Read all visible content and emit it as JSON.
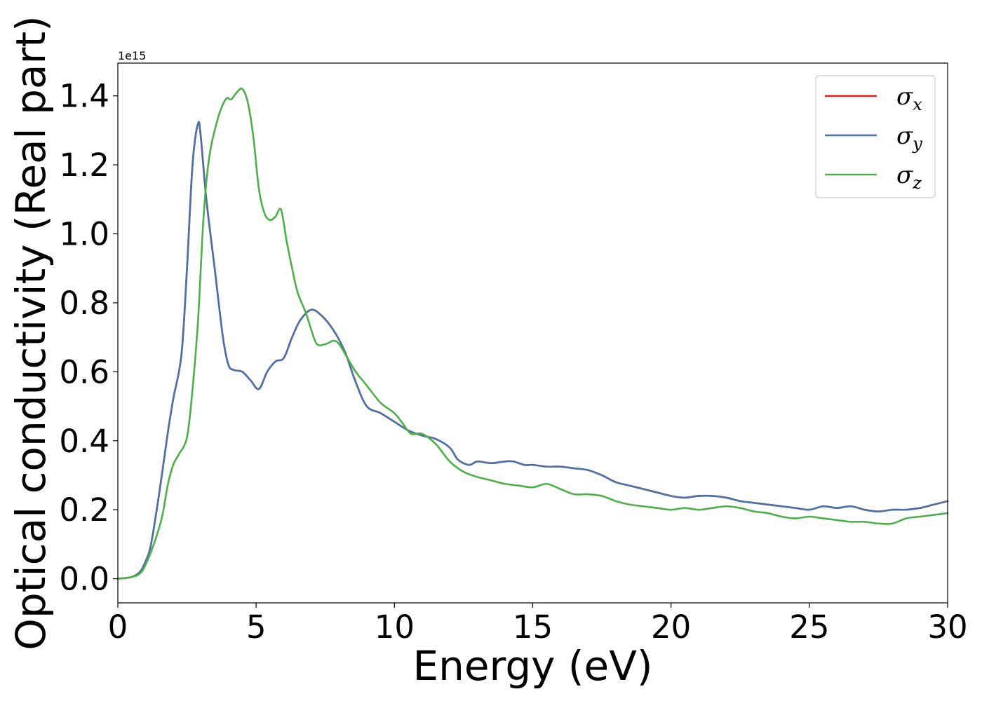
{
  "chart_data": {
    "type": "line",
    "title": "",
    "xlabel": "Energy (eV)",
    "ylabel": "Optical conductivity (Real part)",
    "y_offset_label": "1e15",
    "xlim": [
      0,
      30
    ],
    "ylim": [
      -0.07,
      1.495
    ],
    "x_ticks": [
      0,
      5,
      10,
      15,
      20,
      25,
      30
    ],
    "x_tick_labels": [
      "0",
      "5",
      "10",
      "15",
      "20",
      "25",
      "30"
    ],
    "y_ticks": [
      0.0,
      0.2,
      0.4,
      0.6,
      0.8,
      1.0,
      1.2,
      1.4
    ],
    "y_tick_labels": [
      "0.0",
      "0.2",
      "0.4",
      "0.6",
      "0.8",
      "1.0",
      "1.2",
      "1.4"
    ],
    "grid": false,
    "legend_position": "top-right",
    "series": [
      {
        "name": "σx",
        "symbol": "σ",
        "subscript": "x",
        "color": "#e41a1c",
        "x": [
          0,
          0.5,
          0.8,
          1.0,
          1.2,
          1.5,
          1.8,
          2.0,
          2.3,
          2.5,
          2.7,
          2.9,
          3.0,
          3.2,
          3.5,
          3.8,
          4.0,
          4.2,
          4.5,
          4.8,
          5.1,
          5.4,
          5.7,
          6.0,
          6.3,
          6.6,
          7.0,
          7.4,
          7.8,
          8.2,
          8.6,
          9.0,
          9.5,
          10.0,
          10.5,
          11.0,
          11.5,
          12.0,
          12.3,
          12.7,
          13.0,
          13.5,
          14.0,
          14.3,
          14.7,
          15.0,
          15.5,
          16.0,
          16.5,
          17.0,
          17.5,
          18.0,
          18.5,
          19.0,
          19.5,
          20.0,
          20.5,
          21.0,
          21.5,
          22.0,
          22.5,
          23.0,
          23.5,
          24.0,
          24.5,
          25.0,
          25.5,
          26.0,
          26.5,
          27.0,
          27.5,
          28.0,
          28.5,
          29.0,
          29.5,
          30.0
        ],
        "values": [
          0.0,
          0.005,
          0.02,
          0.05,
          0.1,
          0.25,
          0.42,
          0.52,
          0.65,
          0.9,
          1.2,
          1.32,
          1.28,
          1.1,
          0.9,
          0.7,
          0.62,
          0.605,
          0.6,
          0.575,
          0.55,
          0.6,
          0.63,
          0.64,
          0.7,
          0.75,
          0.78,
          0.76,
          0.72,
          0.66,
          0.57,
          0.5,
          0.48,
          0.455,
          0.43,
          0.415,
          0.405,
          0.38,
          0.345,
          0.33,
          0.34,
          0.335,
          0.34,
          0.34,
          0.33,
          0.33,
          0.325,
          0.325,
          0.32,
          0.315,
          0.3,
          0.28,
          0.27,
          0.26,
          0.25,
          0.24,
          0.235,
          0.24,
          0.24,
          0.235,
          0.225,
          0.22,
          0.215,
          0.21,
          0.205,
          0.2,
          0.21,
          0.205,
          0.21,
          0.2,
          0.195,
          0.2,
          0.2,
          0.205,
          0.215,
          0.225
        ]
      },
      {
        "name": "σy",
        "symbol": "σ",
        "subscript": "y",
        "color": "#4a73a8",
        "x": [
          0,
          0.5,
          0.8,
          1.0,
          1.2,
          1.5,
          1.8,
          2.0,
          2.3,
          2.5,
          2.7,
          2.9,
          3.0,
          3.2,
          3.5,
          3.8,
          4.0,
          4.2,
          4.5,
          4.8,
          5.1,
          5.4,
          5.7,
          6.0,
          6.3,
          6.6,
          7.0,
          7.4,
          7.8,
          8.2,
          8.6,
          9.0,
          9.5,
          10.0,
          10.5,
          11.0,
          11.5,
          12.0,
          12.3,
          12.7,
          13.0,
          13.5,
          14.0,
          14.3,
          14.7,
          15.0,
          15.5,
          16.0,
          16.5,
          17.0,
          17.5,
          18.0,
          18.5,
          19.0,
          19.5,
          20.0,
          20.5,
          21.0,
          21.5,
          22.0,
          22.5,
          23.0,
          23.5,
          24.0,
          24.5,
          25.0,
          25.5,
          26.0,
          26.5,
          27.0,
          27.5,
          28.0,
          28.5,
          29.0,
          29.5,
          30.0
        ],
        "values": [
          0.0,
          0.005,
          0.02,
          0.05,
          0.1,
          0.25,
          0.42,
          0.52,
          0.65,
          0.9,
          1.2,
          1.32,
          1.28,
          1.1,
          0.9,
          0.7,
          0.62,
          0.605,
          0.6,
          0.575,
          0.55,
          0.6,
          0.63,
          0.64,
          0.7,
          0.75,
          0.78,
          0.76,
          0.72,
          0.66,
          0.57,
          0.5,
          0.48,
          0.455,
          0.43,
          0.415,
          0.405,
          0.38,
          0.345,
          0.33,
          0.34,
          0.335,
          0.34,
          0.34,
          0.33,
          0.33,
          0.325,
          0.325,
          0.32,
          0.315,
          0.3,
          0.28,
          0.27,
          0.26,
          0.25,
          0.24,
          0.235,
          0.24,
          0.24,
          0.235,
          0.225,
          0.22,
          0.215,
          0.21,
          0.205,
          0.2,
          0.21,
          0.205,
          0.21,
          0.2,
          0.195,
          0.2,
          0.2,
          0.205,
          0.215,
          0.225
        ]
      },
      {
        "name": "σz",
        "symbol": "σ",
        "subscript": "z",
        "color": "#4daf4a",
        "x": [
          0,
          0.5,
          0.8,
          1.0,
          1.3,
          1.6,
          1.8,
          2.0,
          2.2,
          2.5,
          2.7,
          2.9,
          3.1,
          3.3,
          3.6,
          3.9,
          4.1,
          4.3,
          4.5,
          4.7,
          4.9,
          5.1,
          5.3,
          5.5,
          5.7,
          5.9,
          6.1,
          6.3,
          6.5,
          6.8,
          7.0,
          7.2,
          7.5,
          7.8,
          8.0,
          8.3,
          8.6,
          9.0,
          9.5,
          10.0,
          10.3,
          10.6,
          11.0,
          11.5,
          12.0,
          12.5,
          13.0,
          13.5,
          14.0,
          14.5,
          15.0,
          15.5,
          16.0,
          16.5,
          17.0,
          17.5,
          18.0,
          18.5,
          19.0,
          19.5,
          20.0,
          20.5,
          21.0,
          21.5,
          22.0,
          22.5,
          23.0,
          23.5,
          24.0,
          24.5,
          25.0,
          25.5,
          26.0,
          26.5,
          27.0,
          27.5,
          28.0,
          28.5,
          29.0,
          29.5,
          30.0
        ],
        "values": [
          0.0,
          0.005,
          0.015,
          0.04,
          0.1,
          0.18,
          0.27,
          0.33,
          0.36,
          0.41,
          0.55,
          0.75,
          1.05,
          1.22,
          1.33,
          1.39,
          1.39,
          1.41,
          1.42,
          1.38,
          1.28,
          1.13,
          1.06,
          1.04,
          1.05,
          1.07,
          0.98,
          0.9,
          0.83,
          0.77,
          0.72,
          0.68,
          0.68,
          0.69,
          0.68,
          0.64,
          0.6,
          0.56,
          0.51,
          0.48,
          0.45,
          0.42,
          0.42,
          0.39,
          0.34,
          0.31,
          0.295,
          0.285,
          0.275,
          0.27,
          0.265,
          0.275,
          0.26,
          0.245,
          0.245,
          0.24,
          0.225,
          0.215,
          0.21,
          0.205,
          0.2,
          0.205,
          0.2,
          0.205,
          0.21,
          0.205,
          0.195,
          0.19,
          0.18,
          0.175,
          0.18,
          0.175,
          0.17,
          0.165,
          0.165,
          0.16,
          0.16,
          0.175,
          0.18,
          0.185,
          0.19
        ]
      }
    ]
  }
}
